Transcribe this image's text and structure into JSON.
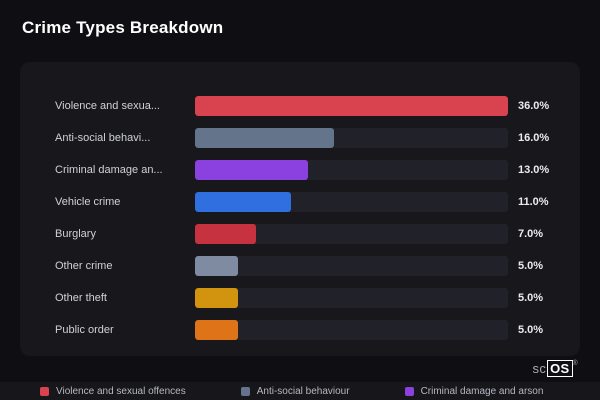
{
  "header": {
    "title": "Crime Types Breakdown"
  },
  "chart_data": {
    "type": "bar",
    "orientation": "horizontal",
    "title": "Crime Types Breakdown",
    "xlabel": "",
    "ylabel": "",
    "xlim": [
      0,
      36
    ],
    "xmax": 36,
    "grid": false,
    "legend_position": "bottom",
    "track_color": "#21212a",
    "rows": [
      {
        "label": "Violence and sexua...",
        "value": 36.0,
        "display": "36.0%",
        "color": "#d8434f"
      },
      {
        "label": "Anti-social behavi...",
        "value": 16.0,
        "display": "16.0%",
        "color": "#64748b"
      },
      {
        "label": "Criminal damage an...",
        "value": 13.0,
        "display": "13.0%",
        "color": "#8a41e0"
      },
      {
        "label": "Vehicle crime",
        "value": 11.0,
        "display": "11.0%",
        "color": "#2f6fdf"
      },
      {
        "label": "Burglary",
        "value": 7.0,
        "display": "7.0%",
        "color": "#c73240"
      },
      {
        "label": "Other crime",
        "value": 5.0,
        "display": "5.0%",
        "color": "#7e8ba1"
      },
      {
        "label": "Other theft",
        "value": 5.0,
        "display": "5.0%",
        "color": "#d2930f"
      },
      {
        "label": "Public order",
        "value": 5.0,
        "display": "5.0%",
        "color": "#df7317"
      }
    ],
    "legend": [
      {
        "label": "Violence and sexual offences",
        "color": "#d8434f"
      },
      {
        "label": "Anti-social behaviour",
        "color": "#64748b"
      },
      {
        "label": "Criminal damage and arson",
        "color": "#8a41e0"
      }
    ]
  },
  "watermark": {
    "prefix": "sc",
    "boxed": "OS",
    "reg": "®"
  }
}
